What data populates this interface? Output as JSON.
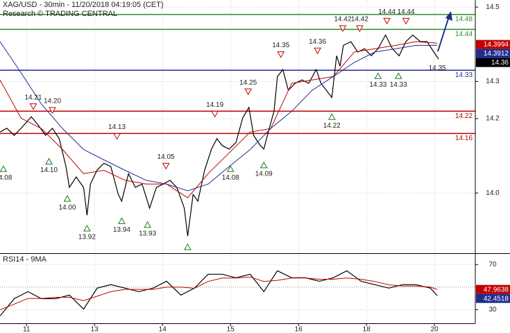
{
  "chart_data": [
    {
      "type": "line",
      "title": "XAG/USD - 30min - 11/20/2018 04:19:05 (CET)",
      "subtitle": "Research © TRADING CENTRAL",
      "xlim": [
        -0.39,
        6.6
      ],
      "ylim": [
        13.838,
        14.519
      ],
      "yticks": [
        14.5,
        14.3,
        14.2,
        {
          "value": 14,
          "label": "14.0"
        }
      ],
      "grid": true,
      "series": [
        {
          "color": "#000000",
          "x": [
            -0.39,
            -0.29,
            -0.18,
            -0.08,
            0.07,
            0.17,
            0.28,
            0.38,
            0.48,
            0.58,
            0.63,
            0.73,
            0.84,
            0.89,
            0.94,
            1.04,
            1.14,
            1.24,
            1.35,
            1.4,
            1.5,
            1.6,
            1.7,
            1.81,
            1.91,
            2.01,
            2.11,
            2.21,
            2.32,
            2.37,
            2.45,
            2.52,
            2.62,
            2.72,
            2.8,
            2.88,
            2.98,
            3.08,
            3.18,
            3.27,
            3.34,
            3.44,
            3.49,
            3.57,
            3.64,
            3.69,
            3.77,
            3.85,
            3.95,
            4.05,
            4.15,
            4.26,
            4.33,
            4.41,
            4.49,
            4.56,
            4.61,
            4.66,
            4.77,
            4.87,
            4.97,
            5.07,
            5.17,
            5.28,
            5.38,
            5.48,
            5.58,
            5.68,
            5.79,
            5.89,
            5.99,
            6.06
          ],
          "values": [
            14.164,
            14.174,
            14.155,
            14.174,
            14.205,
            14.183,
            14.155,
            14.174,
            14.146,
            14.071,
            14.015,
            14.043,
            14.015,
            13.94,
            14.024,
            14.062,
            14.08,
            14.071,
            13.996,
            13.978,
            14.052,
            14.015,
            14.024,
            13.959,
            14.015,
            14.024,
            14.034,
            14.015,
            13.959,
            13.884,
            13.996,
            13.978,
            14.062,
            14.118,
            14.146,
            14.127,
            14.118,
            14.136,
            14.202,
            14.23,
            14.155,
            14.127,
            14.118,
            14.174,
            14.22,
            14.313,
            14.332,
            14.276,
            14.295,
            14.304,
            14.295,
            14.332,
            14.295,
            14.276,
            14.257,
            14.369,
            14.341,
            14.397,
            14.407,
            14.379,
            14.388,
            14.369,
            14.388,
            14.425,
            14.388,
            14.369,
            14.407,
            14.425,
            14.407,
            14.407,
            14.379,
            14.36
          ]
        },
        {
          "color": "#c00000",
          "x": [
            -0.39,
            -0.08,
            0.22,
            0.53,
            0.84,
            1.14,
            1.45,
            1.76,
            2.06,
            2.37,
            2.67,
            2.98,
            3.29,
            3.59,
            3.9,
            4.2,
            4.51,
            4.82,
            5.12,
            5.43,
            5.73,
            6.04
          ],
          "values": [
            14.304,
            14.201,
            14.173,
            14.117,
            14.052,
            14.061,
            14.034,
            14.024,
            14.024,
            13.987,
            14.052,
            14.108,
            14.164,
            14.173,
            14.295,
            14.304,
            14.313,
            14.379,
            14.388,
            14.397,
            14.407,
            14.403
          ]
        },
        {
          "color": "#1f2d8f",
          "x": [
            -0.39,
            -0.08,
            0.22,
            0.53,
            0.84,
            1.14,
            1.45,
            1.76,
            2.06,
            2.37,
            2.67,
            2.98,
            3.29,
            3.59,
            3.9,
            4.2,
            4.51,
            4.82,
            5.12,
            5.43,
            5.73,
            6.04
          ],
          "values": [
            14.407,
            14.323,
            14.239,
            14.173,
            14.117,
            14.089,
            14.061,
            14.034,
            14.024,
            14.006,
            14.024,
            14.071,
            14.117,
            14.173,
            14.22,
            14.276,
            14.313,
            14.351,
            14.379,
            14.388,
            14.397,
            14.397
          ]
        }
      ],
      "levels": [
        {
          "value": 14.48,
          "color": "#2e8b2e"
        },
        {
          "value": 14.44,
          "color": "#2e8b2e"
        },
        {
          "value": 14.33,
          "color": "#1f2d8f"
        },
        {
          "value": 14.22,
          "color": "#c00000"
        },
        {
          "value": 14.16,
          "color": "#c00000"
        }
      ],
      "markers": [
        {
          "kind": "low",
          "x": -0.34,
          "value": 14.08,
          "label": "14.08"
        },
        {
          "kind": "high",
          "x": 0.1,
          "value": 14.21,
          "label": "14.21"
        },
        {
          "kind": "high",
          "x": 0.38,
          "value": 14.2,
          "label": "14.20"
        },
        {
          "kind": "low",
          "x": 0.33,
          "value": 14.1,
          "label": "14.10"
        },
        {
          "kind": "low",
          "x": 0.6,
          "value": 14.0,
          "label": "14.00"
        },
        {
          "kind": "low",
          "x": 0.89,
          "value": 13.92,
          "label": "13.92"
        },
        {
          "kind": "high",
          "x": 1.33,
          "value": 14.13,
          "label": "14.13"
        },
        {
          "kind": "low",
          "x": 1.4,
          "value": 13.94,
          "label": "13.94"
        },
        {
          "kind": "low",
          "x": 1.78,
          "value": 13.93,
          "label": "13.93"
        },
        {
          "kind": "high",
          "x": 2.05,
          "value": 14.05,
          "label": "14.05"
        },
        {
          "kind": "low",
          "x": 2.37,
          "value": 13.87,
          "label": null
        },
        {
          "kind": "high",
          "x": 2.77,
          "value": 14.19,
          "label": "14.19"
        },
        {
          "kind": "low",
          "x": 3.0,
          "value": 14.08,
          "label": "14.08"
        },
        {
          "kind": "high",
          "x": 3.26,
          "value": 14.25,
          "label": "14.25"
        },
        {
          "kind": "low",
          "x": 3.49,
          "value": 14.09,
          "label": "14.09"
        },
        {
          "kind": "high",
          "x": 3.74,
          "value": 14.35,
          "label": "14.35"
        },
        {
          "kind": "high",
          "x": 4.28,
          "value": 14.36,
          "label": "14.36"
        },
        {
          "kind": "low",
          "x": 4.49,
          "value": 14.22,
          "label": "14.22"
        },
        {
          "kind": "high",
          "x": 4.65,
          "value": 14.42,
          "label": "14.42"
        },
        {
          "kind": "high",
          "x": 4.9,
          "value": 14.42,
          "label": "14.42"
        },
        {
          "kind": "low",
          "x": 5.17,
          "value": 14.33,
          "label": "14.33"
        },
        {
          "kind": "high",
          "x": 5.3,
          "value": 14.44,
          "label": "14.44"
        },
        {
          "kind": "low",
          "x": 5.47,
          "value": 14.33,
          "label": "14.33"
        },
        {
          "kind": "high",
          "x": 5.58,
          "value": 14.44,
          "label": "14.44"
        },
        {
          "kind": "text",
          "x": 6.04,
          "value": 14.35,
          "label": "14.35"
        }
      ],
      "last_values": [
        {
          "value": 14.3994,
          "color": "#c00000"
        },
        {
          "value": 14.3912,
          "color": "#1f2d8f"
        },
        {
          "value": 14.36,
          "color": "#000000"
        }
      ]
    },
    {
      "type": "line",
      "title": "RSI14 - 9MA",
      "xlim": [
        -0.39,
        6.6
      ],
      "xticks": [
        {
          "value": 0,
          "label": "11"
        },
        {
          "value": 1,
          "label": "13"
        },
        {
          "value": 2,
          "label": "14"
        },
        {
          "value": 3,
          "label": "15"
        },
        {
          "value": 4,
          "label": "16"
        },
        {
          "value": 5,
          "label": "18"
        },
        {
          "value": 6,
          "label": "20"
        }
      ],
      "ylim": [
        18,
        80
      ],
      "yticks": [
        70,
        30
      ],
      "midline": 50,
      "grid": true,
      "series": [
        {
          "color": "#000000",
          "x": [
            -0.39,
            -0.18,
            0.02,
            0.22,
            0.43,
            0.63,
            0.84,
            1.04,
            1.24,
            1.45,
            1.65,
            1.86,
            2.06,
            2.27,
            2.47,
            2.67,
            2.88,
            3.08,
            3.29,
            3.49,
            3.69,
            3.9,
            4.1,
            4.31,
            4.51,
            4.71,
            4.92,
            5.12,
            5.33,
            5.53,
            5.73,
            5.94,
            6.04
          ],
          "values": [
            24.5,
            39.8,
            46.0,
            39.8,
            39.8,
            42.9,
            30.6,
            49.1,
            52.2,
            49.1,
            46.0,
            49.1,
            55.2,
            42.9,
            49.1,
            61.4,
            61.4,
            58.3,
            61.4,
            46.0,
            64.5,
            58.3,
            58.3,
            55.2,
            58.3,
            64.5,
            55.2,
            52.2,
            49.1,
            52.2,
            52.2,
            49.1,
            42.5
          ]
        },
        {
          "color": "#c00000",
          "x": [
            -0.39,
            -0.18,
            0.02,
            0.22,
            0.43,
            0.63,
            0.84,
            1.04,
            1.24,
            1.45,
            1.65,
            1.86,
            2.06,
            2.27,
            2.47,
            2.67,
            2.88,
            3.08,
            3.29,
            3.49,
            3.69,
            3.9,
            4.1,
            4.31,
            4.51,
            4.71,
            4.92,
            5.12,
            5.33,
            5.53,
            5.73,
            5.94,
            6.04
          ],
          "values": [
            30,
            35,
            40,
            40,
            41,
            41,
            38,
            42,
            46,
            48,
            48,
            48,
            50,
            50,
            49,
            55,
            58,
            58,
            59,
            55,
            56,
            58,
            58,
            57,
            57,
            58,
            57,
            55,
            52,
            51,
            51,
            50,
            48.0
          ]
        }
      ],
      "last_values": [
        {
          "value": 47.9638,
          "color": "#c00000"
        },
        {
          "value": 42.4518,
          "color": "#1f2d8f"
        }
      ]
    }
  ]
}
